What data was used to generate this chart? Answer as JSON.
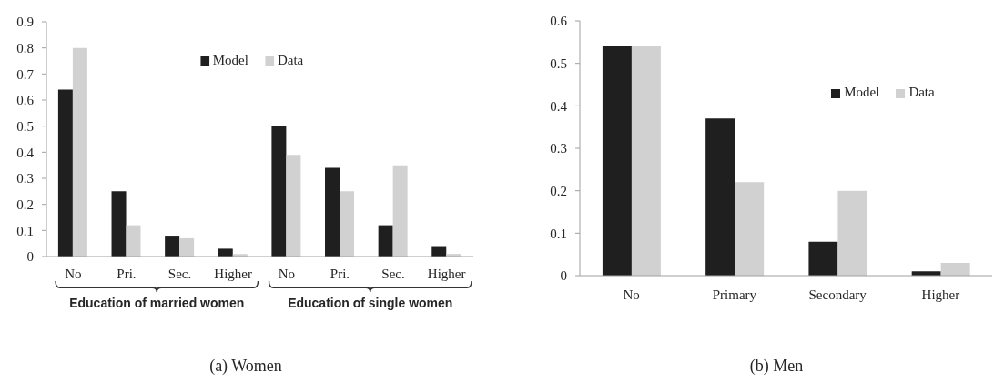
{
  "chart_data": [
    {
      "type": "bar",
      "title": "(a) Women",
      "categories": [
        "No",
        "Pri.",
        "Sec.",
        "Higher",
        "No",
        "Pri.",
        "Sec.",
        "Higher"
      ],
      "series": [
        {
          "name": "Model",
          "color": "#1f1f1f",
          "values": [
            0.64,
            0.25,
            0.08,
            0.03,
            0.5,
            0.34,
            0.12,
            0.04
          ]
        },
        {
          "name": "Data",
          "color": "#d1d1d1",
          "values": [
            0.8,
            0.12,
            0.07,
            0.01,
            0.39,
            0.25,
            0.35,
            0.01
          ]
        }
      ],
      "ylim": [
        0,
        0.9
      ],
      "yticks": [
        0,
        0.1,
        0.2,
        0.3,
        0.4,
        0.5,
        0.6,
        0.7,
        0.8,
        0.9
      ],
      "legend": "top",
      "annotations": [
        "Education of married women",
        "Education of single women"
      ]
    },
    {
      "type": "bar",
      "title": "(b) Men",
      "categories": [
        "No",
        "Primary",
        "Secondary",
        "Higher"
      ],
      "series": [
        {
          "name": "Model",
          "color": "#1f1f1f",
          "values": [
            0.54,
            0.37,
            0.08,
            0.01
          ]
        },
        {
          "name": "Data",
          "color": "#d1d1d1",
          "values": [
            0.54,
            0.22,
            0.2,
            0.03
          ]
        }
      ],
      "ylim": [
        0,
        0.6
      ],
      "yticks": [
        0,
        0.1,
        0.2,
        0.3,
        0.4,
        0.5,
        0.6
      ],
      "legend": "top right"
    }
  ]
}
